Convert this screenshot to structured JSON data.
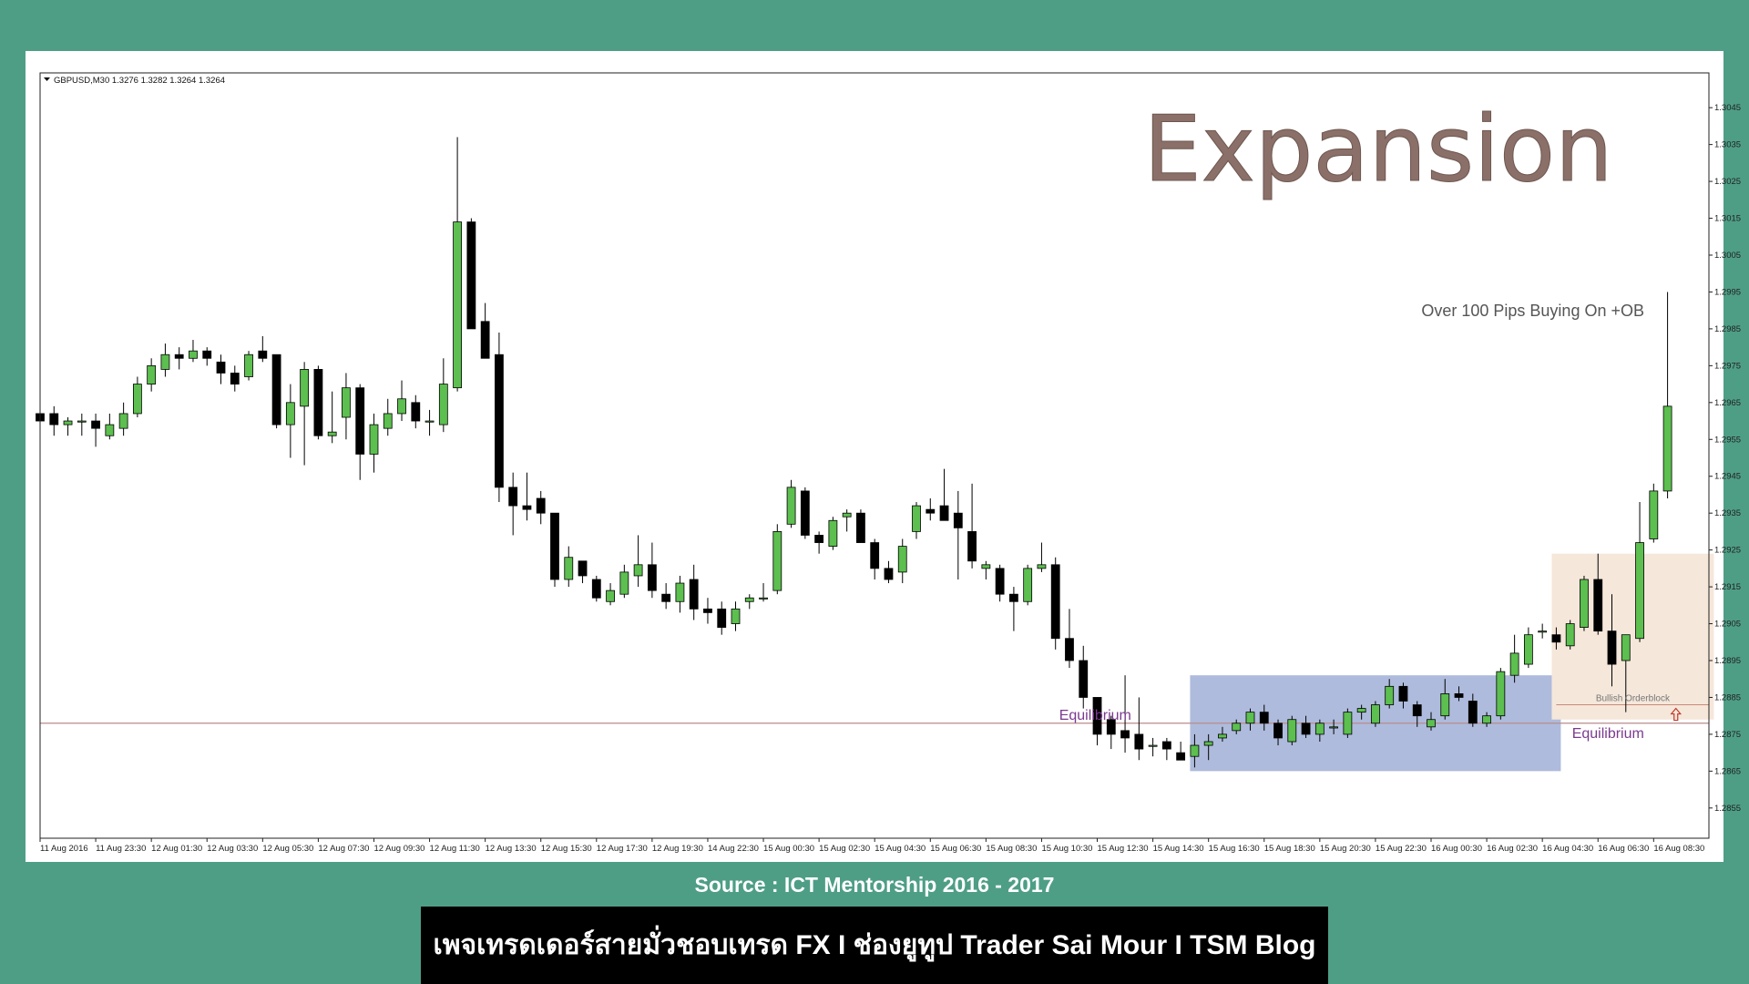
{
  "chart_data": {
    "type": "candlestick",
    "symbol_header": "GBPUSD,M30  1.3276 1.3282 1.3264 1.3264",
    "title": "Expansion",
    "annotation": "Over 100 Pips Buying On +OB",
    "zones": {
      "equilibrium_left_label": "Equilibrium",
      "equilibrium_right_label": "Equilibrium",
      "orderblock_label": "Bullish Orderblock",
      "equilibrium_level": 1.2878,
      "consolidation_box": {
        "start_index": 83,
        "end_index": 109,
        "low": 1.2865,
        "high": 1.2891
      },
      "orderblock_box": {
        "start_index": 109,
        "end_index": 120,
        "low": 1.2879,
        "high": 1.2924
      },
      "orderblock_level": 1.2883
    },
    "colors": {
      "bull": "#5cbf4f",
      "bear": "#000000",
      "box_blue": "#aebbdc",
      "box_peach": "#f5e7da",
      "equilibrium_line": "#b98c8c",
      "label_purple": "#7b3a8f",
      "title": "#8a7068"
    },
    "ylim": [
      1.2851,
      1.3049
    ],
    "y_ticks": [
      "1.3045",
      "1.3035",
      "1.3025",
      "1.3015",
      "1.3005",
      "1.2995",
      "1.2985",
      "1.2975",
      "1.2965",
      "1.2955",
      "1.2945",
      "1.2935",
      "1.2925",
      "1.2915",
      "1.2905",
      "1.2895",
      "1.2885",
      "1.2875",
      "1.2865",
      "1.2855"
    ],
    "x_labels": [
      "11 Aug 2016",
      "11 Aug 23:30",
      "12 Aug 01:30",
      "12 Aug 03:30",
      "12 Aug 05:30",
      "12 Aug 07:30",
      "12 Aug 09:30",
      "12 Aug 11:30",
      "12 Aug 13:30",
      "12 Aug 15:30",
      "12 Aug 17:30",
      "12 Aug 19:30",
      "14 Aug 22:30",
      "15 Aug 00:30",
      "15 Aug 02:30",
      "15 Aug 04:30",
      "15 Aug 06:30",
      "15 Aug 08:30",
      "15 Aug 10:30",
      "15 Aug 12:30",
      "15 Aug 14:30",
      "15 Aug 16:30",
      "15 Aug 18:30",
      "15 Aug 20:30",
      "15 Aug 22:30",
      "16 Aug 00:30",
      "16 Aug 02:30",
      "16 Aug 04:30",
      "16 Aug 06:30",
      "16 Aug 08:30"
    ],
    "ohlc": [
      [
        1.2962,
        1.2965,
        1.2955,
        1.296
      ],
      [
        1.2962,
        1.2964,
        1.2956,
        1.2959
      ],
      [
        1.2959,
        1.2961,
        1.2956,
        1.296
      ],
      [
        1.296,
        1.2962,
        1.2956,
        1.296
      ],
      [
        1.296,
        1.2962,
        1.2953,
        1.2958
      ],
      [
        1.2956,
        1.2962,
        1.2955,
        1.2959
      ],
      [
        1.2958,
        1.2965,
        1.2956,
        1.2962
      ],
      [
        1.2962,
        1.2972,
        1.2961,
        1.297
      ],
      [
        1.297,
        1.2977,
        1.2968,
        1.2975
      ],
      [
        1.2974,
        1.2981,
        1.2972,
        1.2978
      ],
      [
        1.2978,
        1.298,
        1.2974,
        1.2977
      ],
      [
        1.2977,
        1.2982,
        1.2976,
        1.2979
      ],
      [
        1.2979,
        1.298,
        1.2975,
        1.2977
      ],
      [
        1.2976,
        1.2978,
        1.297,
        1.2973
      ],
      [
        1.2973,
        1.2975,
        1.2968,
        1.297
      ],
      [
        1.2972,
        1.2979,
        1.2971,
        1.2978
      ],
      [
        1.2979,
        1.2983,
        1.2976,
        1.2977
      ],
      [
        1.2978,
        1.2978,
        1.2958,
        1.2959
      ],
      [
        1.2959,
        1.297,
        1.295,
        1.2965
      ],
      [
        1.2964,
        1.2976,
        1.2948,
        1.2974
      ],
      [
        1.2974,
        1.2975,
        1.2955,
        1.2956
      ],
      [
        1.2956,
        1.2968,
        1.2954,
        1.2957
      ],
      [
        1.2961,
        1.2973,
        1.2955,
        1.2969
      ],
      [
        1.2969,
        1.297,
        1.2944,
        1.2951
      ],
      [
        1.2951,
        1.2962,
        1.2946,
        1.2959
      ],
      [
        1.2958,
        1.2966,
        1.2956,
        1.2962
      ],
      [
        1.2962,
        1.2971,
        1.296,
        1.2966
      ],
      [
        1.2965,
        1.2967,
        1.2958,
        1.296
      ],
      [
        1.296,
        1.2963,
        1.2956,
        1.296
      ],
      [
        1.2959,
        1.2977,
        1.2957,
        1.297
      ],
      [
        1.2969,
        1.3037,
        1.2968,
        1.3014
      ],
      [
        1.3014,
        1.3015,
        1.2985,
        1.2985
      ],
      [
        1.2987,
        1.2992,
        1.2977,
        1.2977
      ],
      [
        1.2978,
        1.2984,
        1.2938,
        1.2942
      ],
      [
        1.2942,
        1.2946,
        1.2929,
        1.2937
      ],
      [
        1.2937,
        1.2946,
        1.2933,
        1.2936
      ],
      [
        1.2939,
        1.2941,
        1.2932,
        1.2935
      ],
      [
        1.2935,
        1.2935,
        1.2915,
        1.2917
      ],
      [
        1.2917,
        1.2926,
        1.2915,
        1.2923
      ],
      [
        1.2922,
        1.2922,
        1.2916,
        1.2918
      ],
      [
        1.2917,
        1.2918,
        1.2911,
        1.2912
      ],
      [
        1.2911,
        1.2916,
        1.291,
        1.2914
      ],
      [
        1.2913,
        1.2921,
        1.2912,
        1.2919
      ],
      [
        1.2918,
        1.2929,
        1.2915,
        1.2921
      ],
      [
        1.2921,
        1.2927,
        1.2912,
        1.2914
      ],
      [
        1.2913,
        1.2916,
        1.2909,
        1.2911
      ],
      [
        1.2911,
        1.2918,
        1.2908,
        1.2916
      ],
      [
        1.2917,
        1.2921,
        1.2906,
        1.2909
      ],
      [
        1.2909,
        1.2912,
        1.2905,
        1.2908
      ],
      [
        1.2909,
        1.2911,
        1.2902,
        1.2904
      ],
      [
        1.2905,
        1.2911,
        1.2903,
        1.2909
      ],
      [
        1.2911,
        1.2913,
        1.2909,
        1.2912
      ],
      [
        1.2912,
        1.2916,
        1.2911,
        1.2912
      ],
      [
        1.2914,
        1.2932,
        1.2913,
        1.293
      ],
      [
        1.2932,
        1.2944,
        1.2931,
        1.2942
      ],
      [
        1.2941,
        1.2942,
        1.2928,
        1.2929
      ],
      [
        1.2929,
        1.293,
        1.2924,
        1.2927
      ],
      [
        1.2926,
        1.2934,
        1.2925,
        1.2933
      ],
      [
        1.2934,
        1.2936,
        1.293,
        1.2935
      ],
      [
        1.2935,
        1.2936,
        1.2927,
        1.2927
      ],
      [
        1.2927,
        1.2928,
        1.2917,
        1.292
      ],
      [
        1.292,
        1.2922,
        1.2916,
        1.2917
      ],
      [
        1.2919,
        1.2928,
        1.2916,
        1.2926
      ],
      [
        1.293,
        1.2938,
        1.2928,
        1.2937
      ],
      [
        1.2936,
        1.2939,
        1.2933,
        1.2935
      ],
      [
        1.2937,
        1.2947,
        1.2934,
        1.2933
      ],
      [
        1.2935,
        1.2941,
        1.2917,
        1.2931
      ],
      [
        1.293,
        1.2943,
        1.292,
        1.2922
      ],
      [
        1.292,
        1.2922,
        1.2917,
        1.2921
      ],
      [
        1.292,
        1.2921,
        1.2911,
        1.2913
      ],
      [
        1.2913,
        1.2915,
        1.2903,
        1.2911
      ],
      [
        1.2911,
        1.2921,
        1.291,
        1.292
      ],
      [
        1.292,
        1.2927,
        1.2919,
        1.2921
      ],
      [
        1.2921,
        1.2923,
        1.2898,
        1.2901
      ],
      [
        1.2901,
        1.2909,
        1.2893,
        1.2895
      ],
      [
        1.2895,
        1.2899,
        1.2882,
        1.2885
      ],
      [
        1.2885,
        1.2885,
        1.2872,
        1.2875
      ],
      [
        1.2879,
        1.288,
        1.2871,
        1.2875
      ],
      [
        1.2876,
        1.2891,
        1.287,
        1.2874
      ],
      [
        1.2875,
        1.2885,
        1.2868,
        1.2871
      ],
      [
        1.2872,
        1.2874,
        1.2869,
        1.2872
      ],
      [
        1.2873,
        1.2874,
        1.2868,
        1.2871
      ],
      [
        1.287,
        1.2873,
        1.2868,
        1.2868
      ],
      [
        1.2869,
        1.2875,
        1.2866,
        1.2872
      ],
      [
        1.2872,
        1.2875,
        1.2868,
        1.2873
      ],
      [
        1.2874,
        1.2877,
        1.2873,
        1.2875
      ],
      [
        1.2876,
        1.2879,
        1.2875,
        1.2878
      ],
      [
        1.2878,
        1.2882,
        1.2876,
        1.2881
      ],
      [
        1.2881,
        1.2883,
        1.2876,
        1.2878
      ],
      [
        1.2878,
        1.2879,
        1.2872,
        1.2874
      ],
      [
        1.2873,
        1.288,
        1.2872,
        1.2879
      ],
      [
        1.2878,
        1.288,
        1.2874,
        1.2875
      ],
      [
        1.2875,
        1.2879,
        1.2873,
        1.2878
      ],
      [
        1.2877,
        1.2879,
        1.2875,
        1.2877
      ],
      [
        1.2875,
        1.2882,
        1.2874,
        1.2881
      ],
      [
        1.2881,
        1.2883,
        1.2879,
        1.2882
      ],
      [
        1.2878,
        1.2884,
        1.2877,
        1.2883
      ],
      [
        1.2883,
        1.289,
        1.2882,
        1.2888
      ],
      [
        1.2888,
        1.2889,
        1.2882,
        1.2884
      ],
      [
        1.2883,
        1.2884,
        1.2877,
        1.288
      ],
      [
        1.2877,
        1.2881,
        1.2876,
        1.2879
      ],
      [
        1.288,
        1.289,
        1.2879,
        1.2886
      ],
      [
        1.2886,
        1.2888,
        1.2884,
        1.2885
      ],
      [
        1.2884,
        1.2886,
        1.2877,
        1.2878
      ],
      [
        1.2878,
        1.2881,
        1.2877,
        1.288
      ],
      [
        1.288,
        1.2893,
        1.2879,
        1.2892
      ],
      [
        1.2891,
        1.2902,
        1.2889,
        1.2897
      ],
      [
        1.2894,
        1.2904,
        1.2893,
        1.2902
      ],
      [
        1.2903,
        1.2905,
        1.2901,
        1.2903
      ],
      [
        1.2902,
        1.2904,
        1.2898,
        1.29
      ],
      [
        1.2899,
        1.2906,
        1.2898,
        1.2905
      ],
      [
        1.2904,
        1.2918,
        1.2903,
        1.2917
      ],
      [
        1.2917,
        1.2924,
        1.2902,
        1.2903
      ],
      [
        1.2903,
        1.2913,
        1.2888,
        1.2894
      ],
      [
        1.2895,
        1.2902,
        1.2881,
        1.2902
      ],
      [
        1.2901,
        1.2938,
        1.29,
        1.2927
      ],
      [
        1.2928,
        1.2943,
        1.2927,
        1.2941
      ],
      [
        1.2941,
        1.2995,
        1.2939,
        1.2964
      ]
    ]
  },
  "footer": {
    "source_text": "Source : ICT Mentorship 2016 - 2017",
    "banner_text": "เพจเทรดเดอร์สายมั่วชอบเทรด FX I ช่องยูทูป Trader Sai Mour I TSM Blog"
  }
}
